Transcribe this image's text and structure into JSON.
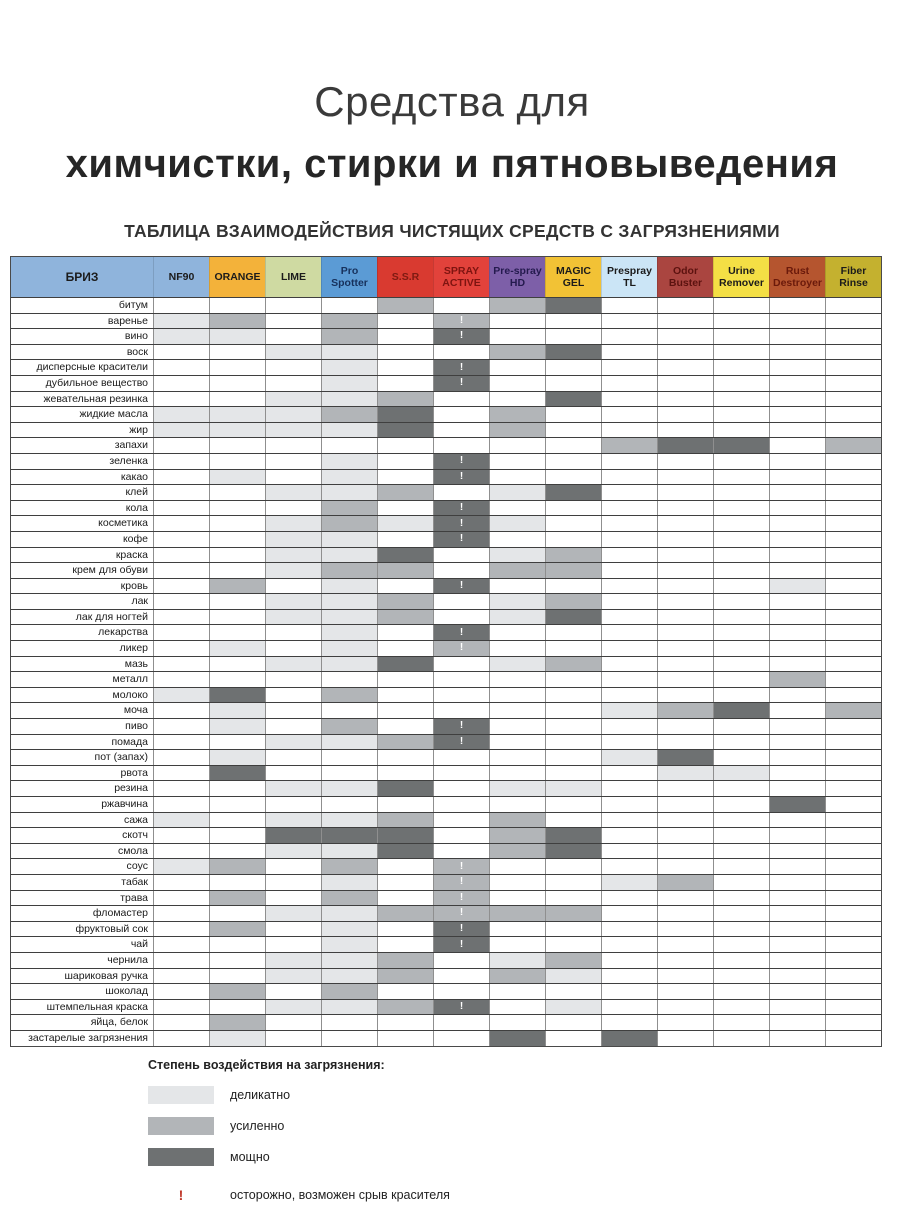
{
  "page": {
    "title_line1": "Средства для",
    "title_line2": "химчистки, стирки и пятновыведения",
    "subtitle": "ТАБЛИЦА ВЗАИМОДЕЙСТВИЯ ЧИСТЯЩИХ СРЕДСТВ С ЗАГРЯЗНЕНИЯМИ"
  },
  "chart_data": {
    "type": "heatmap",
    "title": "ТАБЛИЦА ВЗАИМОДЕЙСТВИЯ ЧИСТЯЩИХ СРЕДСТВ С ЗАГРЯЗНЕНИЯМИ",
    "brand": "БРИЗ",
    "brand_bg": "#8FB4DC",
    "value_scale": {
      "0": "",
      "1": "деликатно",
      "2": "усиленно",
      "3": "мощно"
    },
    "level_colors": {
      "1": "#E4E6E8",
      "2": "#B2B5B8",
      "3": "#6E7172"
    },
    "warning_color": "#C0392B",
    "warning_meaning": "осторожно, возможен срыв красителя",
    "warning_column": "SPRAY ACTIVE",
    "columns": [
      {
        "label": "NF90",
        "bg": "#8FB4DC",
        "fg": "#1b1b1b"
      },
      {
        "label": "ORANGE",
        "bg": "#F3B23A",
        "fg": "#1b1b1b"
      },
      {
        "label": "LIME",
        "bg": "#CFDAA2",
        "fg": "#1b1b1b"
      },
      {
        "label": "Pro Spotter",
        "bg": "#5B9BD5",
        "fg": "#17315c"
      },
      {
        "label": "S.S.R",
        "bg": "#D93A30",
        "fg": "#7e1a12"
      },
      {
        "label": "SPRAY ACTIVE",
        "bg": "#E2423B",
        "fg": "#7e1410"
      },
      {
        "label": "Pre-spray HD",
        "bg": "#7D5FA8",
        "fg": "#241a4e"
      },
      {
        "label": "MAGIC GEL",
        "bg": "#F2C235",
        "fg": "#1b1b1b"
      },
      {
        "label": "Prespray TL",
        "bg": "#CBE5F6",
        "fg": "#1b1b1b"
      },
      {
        "label": "Odor Buster",
        "bg": "#AA4540",
        "fg": "#5c120f"
      },
      {
        "label": "Urine Remover",
        "bg": "#F4DF45",
        "fg": "#1b1b1b"
      },
      {
        "label": "Rust Destroyer",
        "bg": "#B5552F",
        "fg": "#6b1a0b"
      },
      {
        "label": "Fiber Rinse",
        "bg": "#C4B12F",
        "fg": "#1b1b1b"
      }
    ],
    "rows": [
      {
        "label": "битум",
        "values": [
          0,
          0,
          0,
          0,
          2,
          0,
          2,
          3,
          0,
          0,
          0,
          0,
          0
        ],
        "warn": false
      },
      {
        "label": "варенье",
        "values": [
          1,
          2,
          0,
          2,
          0,
          2,
          0,
          0,
          0,
          0,
          0,
          0,
          0
        ],
        "warn": true
      },
      {
        "label": "вино",
        "values": [
          1,
          1,
          0,
          2,
          0,
          3,
          0,
          0,
          0,
          0,
          0,
          0,
          0
        ],
        "warn": true
      },
      {
        "label": "воск",
        "values": [
          0,
          0,
          1,
          1,
          0,
          0,
          2,
          3,
          0,
          0,
          0,
          0,
          0
        ],
        "warn": false
      },
      {
        "label": "дисперсные красители",
        "values": [
          0,
          0,
          0,
          1,
          0,
          3,
          0,
          0,
          0,
          0,
          0,
          0,
          0
        ],
        "warn": true
      },
      {
        "label": "дубильное вещество",
        "values": [
          0,
          0,
          0,
          1,
          0,
          3,
          0,
          0,
          0,
          0,
          0,
          0,
          0
        ],
        "warn": true
      },
      {
        "label": "жевательная резинка",
        "values": [
          0,
          0,
          1,
          1,
          2,
          0,
          0,
          3,
          0,
          0,
          0,
          0,
          0
        ],
        "warn": false
      },
      {
        "label": "жидкие масла",
        "values": [
          1,
          1,
          1,
          2,
          3,
          0,
          2,
          0,
          0,
          0,
          0,
          0,
          0
        ],
        "warn": false
      },
      {
        "label": "жир",
        "values": [
          1,
          1,
          1,
          1,
          3,
          0,
          2,
          0,
          0,
          0,
          0,
          0,
          0
        ],
        "warn": false
      },
      {
        "label": "запахи",
        "values": [
          0,
          0,
          0,
          0,
          0,
          0,
          0,
          0,
          2,
          3,
          3,
          0,
          2
        ],
        "warn": false
      },
      {
        "label": "зеленка",
        "values": [
          0,
          0,
          0,
          1,
          0,
          3,
          0,
          0,
          0,
          0,
          0,
          0,
          0
        ],
        "warn": true
      },
      {
        "label": "какао",
        "values": [
          0,
          1,
          0,
          1,
          0,
          3,
          0,
          0,
          0,
          0,
          0,
          0,
          0
        ],
        "warn": true
      },
      {
        "label": "клей",
        "values": [
          0,
          0,
          1,
          1,
          2,
          0,
          1,
          3,
          0,
          0,
          0,
          0,
          0
        ],
        "warn": false
      },
      {
        "label": "кола",
        "values": [
          0,
          0,
          0,
          2,
          0,
          3,
          0,
          0,
          0,
          0,
          0,
          0,
          0
        ],
        "warn": true
      },
      {
        "label": "косметика",
        "values": [
          0,
          0,
          1,
          2,
          1,
          3,
          1,
          0,
          0,
          0,
          0,
          0,
          0
        ],
        "warn": true
      },
      {
        "label": "кофе",
        "values": [
          0,
          0,
          1,
          1,
          0,
          3,
          0,
          0,
          0,
          0,
          0,
          0,
          0
        ],
        "warn": true
      },
      {
        "label": "краска",
        "values": [
          0,
          0,
          1,
          1,
          3,
          0,
          1,
          2,
          0,
          0,
          0,
          0,
          0
        ],
        "warn": false
      },
      {
        "label": "крем для обуви",
        "values": [
          0,
          0,
          1,
          2,
          2,
          0,
          2,
          2,
          0,
          0,
          0,
          0,
          0
        ],
        "warn": false
      },
      {
        "label": "кровь",
        "values": [
          0,
          2,
          0,
          1,
          0,
          3,
          0,
          0,
          0,
          0,
          0,
          1,
          0
        ],
        "warn": true
      },
      {
        "label": "лак",
        "values": [
          0,
          0,
          1,
          1,
          2,
          0,
          1,
          2,
          0,
          0,
          0,
          0,
          0
        ],
        "warn": false
      },
      {
        "label": "лак для ногтей",
        "values": [
          0,
          0,
          1,
          1,
          2,
          0,
          1,
          3,
          0,
          0,
          0,
          0,
          0
        ],
        "warn": false
      },
      {
        "label": "лекарства",
        "values": [
          0,
          0,
          0,
          1,
          0,
          3,
          0,
          0,
          0,
          0,
          0,
          0,
          0
        ],
        "warn": true
      },
      {
        "label": "ликер",
        "values": [
          0,
          1,
          0,
          1,
          0,
          2,
          0,
          0,
          0,
          0,
          0,
          0,
          0
        ],
        "warn": true
      },
      {
        "label": "мазь",
        "values": [
          0,
          0,
          1,
          1,
          3,
          0,
          1,
          2,
          0,
          0,
          0,
          0,
          0
        ],
        "warn": false
      },
      {
        "label": "металл",
        "values": [
          0,
          0,
          0,
          0,
          0,
          0,
          0,
          0,
          0,
          0,
          0,
          2,
          0
        ],
        "warn": false
      },
      {
        "label": "молоко",
        "values": [
          1,
          3,
          0,
          2,
          0,
          0,
          0,
          0,
          0,
          0,
          0,
          0,
          0
        ],
        "warn": false
      },
      {
        "label": "моча",
        "values": [
          0,
          1,
          0,
          0,
          0,
          0,
          0,
          0,
          1,
          2,
          3,
          0,
          2
        ],
        "warn": false
      },
      {
        "label": "пиво",
        "values": [
          0,
          1,
          0,
          2,
          0,
          3,
          0,
          0,
          0,
          0,
          0,
          0,
          0
        ],
        "warn": true
      },
      {
        "label": "помада",
        "values": [
          0,
          0,
          1,
          1,
          2,
          3,
          0,
          0,
          0,
          0,
          0,
          0,
          0
        ],
        "warn": true
      },
      {
        "label": "пот (запах)",
        "values": [
          0,
          1,
          0,
          0,
          0,
          0,
          0,
          0,
          1,
          3,
          0,
          0,
          0
        ],
        "warn": false
      },
      {
        "label": "рвота",
        "values": [
          0,
          3,
          0,
          0,
          0,
          0,
          0,
          0,
          0,
          1,
          1,
          0,
          0
        ],
        "warn": false
      },
      {
        "label": "резина",
        "values": [
          0,
          0,
          1,
          1,
          3,
          0,
          1,
          1,
          0,
          0,
          0,
          0,
          0
        ],
        "warn": false
      },
      {
        "label": "ржавчина",
        "values": [
          0,
          0,
          0,
          0,
          0,
          0,
          0,
          0,
          0,
          0,
          0,
          3,
          0
        ],
        "warn": false
      },
      {
        "label": "сажа",
        "values": [
          1,
          0,
          1,
          1,
          2,
          0,
          2,
          0,
          0,
          0,
          0,
          0,
          0
        ],
        "warn": false
      },
      {
        "label": "скотч",
        "values": [
          0,
          0,
          3,
          3,
          3,
          0,
          2,
          3,
          0,
          0,
          0,
          0,
          0
        ],
        "warn": false
      },
      {
        "label": "смола",
        "values": [
          0,
          0,
          1,
          1,
          3,
          0,
          2,
          3,
          0,
          0,
          0,
          0,
          0
        ],
        "warn": false
      },
      {
        "label": "соус",
        "values": [
          1,
          2,
          0,
          2,
          0,
          2,
          0,
          0,
          0,
          0,
          0,
          0,
          0
        ],
        "warn": true
      },
      {
        "label": "табак",
        "values": [
          0,
          0,
          0,
          1,
          0,
          2,
          0,
          0,
          1,
          2,
          0,
          0,
          0
        ],
        "warn": true
      },
      {
        "label": "трава",
        "values": [
          0,
          2,
          0,
          2,
          0,
          2,
          0,
          0,
          0,
          0,
          0,
          0,
          0
        ],
        "warn": true
      },
      {
        "label": "фломастер",
        "values": [
          0,
          0,
          1,
          1,
          2,
          2,
          2,
          2,
          0,
          0,
          0,
          0,
          0
        ],
        "warn": true
      },
      {
        "label": "фруктовый сок",
        "values": [
          0,
          2,
          0,
          1,
          0,
          3,
          0,
          0,
          0,
          0,
          0,
          0,
          0
        ],
        "warn": true
      },
      {
        "label": "чай",
        "values": [
          0,
          0,
          0,
          1,
          0,
          3,
          0,
          0,
          0,
          0,
          0,
          0,
          0
        ],
        "warn": true
      },
      {
        "label": "чернила",
        "values": [
          0,
          0,
          1,
          1,
          2,
          0,
          1,
          2,
          0,
          0,
          0,
          0,
          0
        ],
        "warn": false
      },
      {
        "label": "шариковая ручка",
        "values": [
          0,
          0,
          1,
          1,
          2,
          0,
          2,
          1,
          0,
          0,
          0,
          0,
          0
        ],
        "warn": false
      },
      {
        "label": "шоколад",
        "values": [
          0,
          2,
          0,
          2,
          0,
          0,
          0,
          0,
          0,
          0,
          0,
          0,
          0
        ],
        "warn": false
      },
      {
        "label": "штемпельная краска",
        "values": [
          0,
          0,
          1,
          1,
          2,
          3,
          0,
          1,
          0,
          0,
          0,
          0,
          0
        ],
        "warn": true
      },
      {
        "label": "яйца, белок",
        "values": [
          0,
          2,
          0,
          0,
          0,
          0,
          0,
          0,
          0,
          0,
          0,
          0,
          0
        ],
        "warn": false
      },
      {
        "label": "застарелые загрязнения",
        "values": [
          0,
          1,
          0,
          0,
          0,
          0,
          3,
          0,
          3,
          0,
          0,
          0,
          0
        ],
        "warn": false
      }
    ]
  },
  "legend": {
    "title": "Степень воздействия на загрязнения:",
    "items": [
      {
        "label": "деликатно",
        "level": 1
      },
      {
        "label": "усиленно",
        "level": 2
      },
      {
        "label": "мощно",
        "level": 3
      }
    ],
    "warning": {
      "symbol": "!",
      "label": "осторожно, возможен срыв красителя"
    }
  }
}
